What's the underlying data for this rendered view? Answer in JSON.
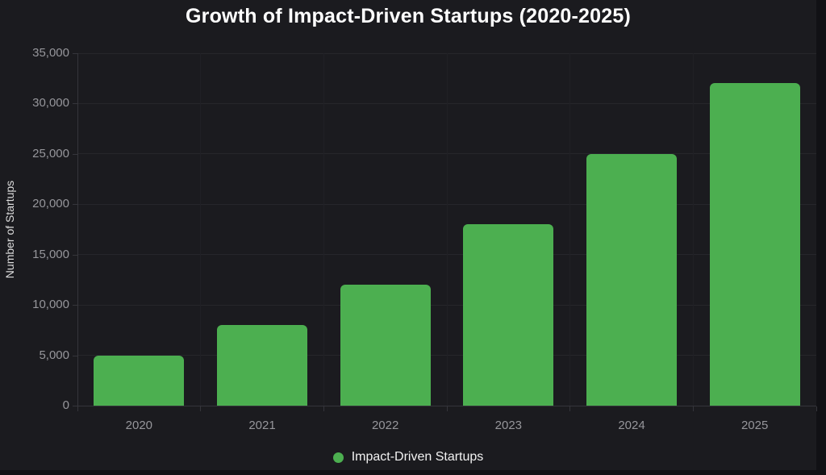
{
  "chart_data": {
    "type": "bar",
    "title": "Growth of Impact-Driven Startups (2020-2025)",
    "xlabel": "",
    "ylabel": "Number of Startups",
    "categories": [
      "2020",
      "2021",
      "2022",
      "2023",
      "2024",
      "2025"
    ],
    "series": [
      {
        "name": "Impact-Driven Startups",
        "values": [
          5000,
          8000,
          12000,
          18000,
          25000,
          32000
        ]
      }
    ],
    "ylim": [
      0,
      35000
    ],
    "ytick_step": 5000,
    "ytick_labels": [
      "0",
      "5,000",
      "10,000",
      "15,000",
      "20,000",
      "25,000",
      "30,000",
      "35,000"
    ],
    "grid": true,
    "legend_position": "bottom"
  },
  "legend": {
    "items": [
      {
        "label": "Impact-Driven Startups",
        "color": "#4caf50"
      }
    ]
  },
  "colors": {
    "bar_green": "#4caf50",
    "card_background": "#1b1b1f",
    "page_background": "#111115",
    "gridline": "#26262b",
    "axis_line": "#35353b",
    "tick_text": "#96969b",
    "title_text": "#ffffff",
    "legend_text": "#f2f2f2",
    "y_axis_title_text": "#dcdcdc"
  }
}
